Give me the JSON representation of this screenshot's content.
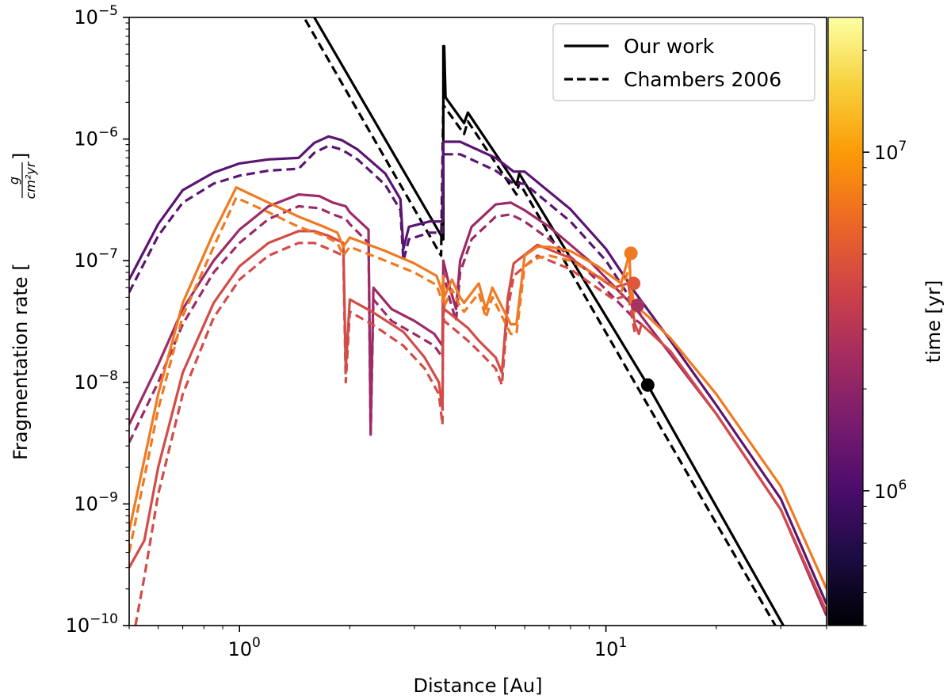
{
  "chart_data": {
    "type": "line",
    "title": "",
    "xlabel": "Distance [Au]",
    "ylabel_main": "Fragmentation rate [",
    "ylabel_unit_num": "g",
    "ylabel_unit_den": "cm²yr",
    "ylabel_close": "]",
    "x_scale": "log",
    "y_scale": "log",
    "xlim": [
      0.5,
      40
    ],
    "ylim": [
      1e-10,
      1e-05
    ],
    "x_ticks": [
      {
        "value": 1,
        "base": "10",
        "exp": "0"
      },
      {
        "value": 10,
        "base": "10",
        "exp": "1"
      }
    ],
    "y_ticks": [
      {
        "value": 1e-10,
        "base": "10",
        "exp": "−10"
      },
      {
        "value": 1e-09,
        "base": "10",
        "exp": "−9"
      },
      {
        "value": 1e-08,
        "base": "10",
        "exp": "−8"
      },
      {
        "value": 1e-07,
        "base": "10",
        "exp": "−7"
      },
      {
        "value": 1e-06,
        "base": "10",
        "exp": "−6"
      },
      {
        "value": 1e-05,
        "base": "10",
        "exp": "−5"
      }
    ],
    "legend": {
      "placement": "top-right",
      "entries": [
        {
          "label": "Our work",
          "style": "solid"
        },
        {
          "label": "Chambers 2006",
          "style": "dashed"
        }
      ]
    },
    "colorbar": {
      "label": "time [yr]",
      "scale": "log",
      "range": [
        400000.0,
        25000000.0
      ],
      "colormap": "inferno",
      "ticks": [
        {
          "value": 1000000.0,
          "base": "10",
          "exp": "6"
        },
        {
          "value": 10000000.0,
          "base": "10",
          "exp": "7"
        }
      ],
      "stops": [
        "#000004",
        "#1b0c41",
        "#4a0c6b",
        "#781c6d",
        "#a52c60",
        "#cf4446",
        "#ed6925",
        "#fb9b06",
        "#f7d13d",
        "#fcffa4"
      ]
    },
    "series": [
      {
        "color": "#000000",
        "style": "solid",
        "x": [
          0.5,
          1.6,
          3.6,
          3.6,
          3.62,
          3.65,
          4.1,
          4.2,
          5.7,
          5.8,
          13,
          30.5
        ],
        "y": [
          0.0001,
          1e-05,
          1.5e-07,
          5.8e-06,
          5.8e-06,
          2.2e-06,
          1.35e-06,
          1.65e-06,
          4.2e-07,
          5.2e-07,
          9.5e-09,
          1e-10
        ]
      },
      {
        "color": "#000000",
        "style": "dashed",
        "x": [
          0.5,
          1.5,
          3.55,
          3.6,
          4.1,
          4.2,
          5.7,
          5.8,
          12.5,
          29
        ],
        "y": [
          0.0001,
          1e-05,
          1.1e-07,
          1.9e-06,
          1.1e-06,
          1.4e-06,
          3.5e-07,
          4.4e-07,
          8e-09,
          1e-10
        ]
      },
      {
        "color": "#5a1570",
        "style": "solid",
        "x": [
          0.5,
          0.6,
          0.7,
          0.85,
          1.0,
          1.2,
          1.45,
          1.6,
          1.75,
          1.9,
          2.1,
          2.5,
          2.75,
          2.8,
          2.9,
          3.3,
          3.58,
          3.6,
          4.0,
          5.0,
          5.6,
          6.0,
          8.0,
          10.0,
          12.0,
          15.0,
          20.0,
          30.0,
          40.0
        ],
        "y": [
          7e-08,
          2e-07,
          3.8e-07,
          5.3e-07,
          6.3e-07,
          6.8e-07,
          7e-07,
          9.3e-07,
          1.05e-06,
          9.8e-07,
          8.2e-07,
          5.2e-07,
          3.2e-07,
          1.25e-07,
          1.9e-07,
          2.1e-07,
          2.1e-07,
          9.5e-07,
          9.5e-07,
          7e-07,
          5.4e-07,
          5.4e-07,
          2.65e-07,
          1.25e-07,
          5.5e-08,
          2.2e-08,
          6.5e-09,
          1.1e-09,
          1.5e-10
        ]
      },
      {
        "color": "#5a1570",
        "style": "dashed",
        "x": [
          0.5,
          0.6,
          0.7,
          0.85,
          1.0,
          1.2,
          1.45,
          1.6,
          1.75,
          1.9,
          2.1,
          2.5,
          2.75,
          2.8,
          2.9,
          3.3,
          3.58,
          3.6,
          4.0,
          5.0,
          5.6,
          6.0,
          8.0,
          10.0,
          12.0,
          12.5
        ],
        "y": [
          5.5e-08,
          1.6e-07,
          3e-07,
          4.3e-07,
          5e-07,
          5.5e-07,
          5.7e-07,
          7.7e-07,
          8.8e-07,
          8.2e-07,
          6.8e-07,
          4.2e-07,
          2.6e-07,
          1e-07,
          1.5e-07,
          1.7e-07,
          1.7e-07,
          7.5e-07,
          7.5e-07,
          5.5e-07,
          4.3e-07,
          4.3e-07,
          2.1e-07,
          1e-07,
          4.3e-08,
          3.5e-08
        ]
      },
      {
        "color": "#9c2b66",
        "style": "solid",
        "x": [
          0.5,
          0.6,
          0.7,
          0.85,
          1.0,
          1.2,
          1.45,
          1.65,
          1.8,
          1.95,
          2.0,
          2.25,
          2.28,
          2.32,
          2.6,
          3.0,
          3.4,
          3.58,
          3.6,
          3.75,
          3.9,
          4.0,
          4.3,
          5.0,
          5.5,
          6.0,
          7.0,
          9.0,
          12.0,
          15.0,
          20.0,
          30.0,
          40.0
        ],
        "y": [
          4.5e-09,
          1.4e-08,
          4e-08,
          1e-07,
          1.8e-07,
          2.8e-07,
          3.5e-07,
          3.4e-07,
          3e-07,
          2.8e-07,
          2.5e-07,
          1.8e-07,
          4e-09,
          6e-08,
          4e-08,
          3.2e-08,
          2.5e-08,
          2e-08,
          1e-07,
          6e-08,
          4e-08,
          1e-07,
          1.9e-07,
          2.9e-07,
          3e-07,
          2.6e-07,
          1.9e-07,
          1e-07,
          4.1e-08,
          1.7e-08,
          5.5e-09,
          9e-10,
          1.2e-10
        ]
      },
      {
        "color": "#9c2b66",
        "style": "dashed",
        "x": [
          0.5,
          0.6,
          0.7,
          0.85,
          1.0,
          1.2,
          1.45,
          1.65,
          1.8,
          1.95,
          2.0,
          2.25,
          2.28,
          2.32,
          2.6,
          3.0,
          3.4,
          3.58,
          3.6,
          3.75,
          3.9,
          4.0,
          4.3,
          5.0,
          5.5,
          6.0,
          7.0,
          9.0,
          12.0,
          12.5
        ],
        "y": [
          3.2e-09,
          1e-08,
          3e-08,
          8e-08,
          1.4e-07,
          2.2e-07,
          2.8e-07,
          2.7e-07,
          2.4e-07,
          2.2e-07,
          2e-07,
          1.4e-07,
          3.5e-09,
          4.8e-08,
          3.2e-08,
          2.5e-08,
          2e-08,
          1.6e-08,
          8e-08,
          4.8e-08,
          3.2e-08,
          8e-08,
          1.5e-07,
          2.3e-07,
          2.4e-07,
          2.1e-07,
          1.5e-07,
          8e-08,
          3.3e-08,
          3e-08
        ]
      },
      {
        "color": "#d24c48",
        "style": "solid",
        "x": [
          0.5,
          0.55,
          0.6,
          0.7,
          0.85,
          1.0,
          1.2,
          1.45,
          1.6,
          1.75,
          1.92,
          1.95,
          2.0,
          2.3,
          2.8,
          3.2,
          3.5,
          3.58,
          3.6,
          3.62,
          4.2,
          4.5,
          5.0,
          5.2,
          5.4,
          5.6,
          6.5,
          8.0,
          10.5,
          11.5,
          12.0,
          12.3,
          12.5,
          15.0,
          20.0,
          30.0,
          40.0
        ],
        "y": [
          3e-10,
          5e-10,
          2e-09,
          1.2e-08,
          4.5e-08,
          9e-08,
          1.4e-07,
          1.75e-07,
          1.75e-07,
          1.6e-07,
          1.4e-07,
          1.3e-08,
          4.8e-08,
          3.8e-08,
          2.6e-08,
          1.6e-08,
          1e-08,
          6e-09,
          6.5e-08,
          4e-08,
          2.8e-08,
          2.2e-08,
          1.6e-08,
          1.2e-08,
          5e-08,
          9.5e-08,
          1.35e-07,
          1.05e-07,
          6e-08,
          6.5e-08,
          3e-08,
          2.5e-08,
          3e-08,
          1.8e-08,
          5.5e-09,
          9e-10,
          1.3e-10
        ]
      },
      {
        "color": "#d24c48",
        "style": "dashed",
        "x": [
          0.52,
          0.55,
          0.6,
          0.7,
          0.85,
          1.0,
          1.2,
          1.45,
          1.6,
          1.75,
          1.92,
          1.95,
          2.0,
          2.3,
          2.8,
          3.2,
          3.5,
          3.58,
          3.6,
          3.62,
          4.2,
          4.5,
          5.0,
          5.2,
          5.4,
          5.6,
          6.5,
          8.0,
          10.5,
          11.5,
          12.0
        ],
        "y": [
          1e-10,
          2.5e-10,
          1.2e-09,
          8e-09,
          3.4e-08,
          7e-08,
          1.1e-07,
          1.4e-07,
          1.4e-07,
          1.25e-07,
          1.1e-07,
          1e-08,
          3.8e-08,
          3e-08,
          2e-08,
          1.3e-08,
          8e-09,
          4.5e-09,
          5e-08,
          3.2e-08,
          2.2e-08,
          1.8e-08,
          1.3e-08,
          9.5e-09,
          4e-08,
          7.5e-08,
          1.1e-07,
          8.5e-08,
          4.8e-08,
          5.2e-08,
          2.5e-08
        ]
      },
      {
        "color": "#f07a22",
        "style": "solid",
        "x": [
          0.5,
          0.6,
          0.7,
          0.85,
          0.98,
          1.2,
          1.45,
          1.7,
          1.85,
          1.92,
          2.0,
          2.5,
          3.0,
          3.45,
          3.58,
          3.6,
          3.62,
          3.8,
          4.0,
          4.1,
          4.5,
          4.7,
          4.9,
          5.5,
          5.7,
          6.0,
          6.5,
          7.0,
          8.0,
          9.5,
          11.0,
          11.6,
          11.7,
          12.0,
          13.0,
          15.0,
          20.0,
          30.0,
          40.0
        ],
        "y": [
          6e-10,
          8e-09,
          4.5e-08,
          1.7e-07,
          4e-07,
          3e-07,
          2.3e-07,
          1.9e-07,
          1.7e-07,
          1.3e-07,
          1.55e-07,
          1.2e-07,
          9.5e-08,
          7.5e-08,
          5.5e-08,
          7.5e-08,
          5e-08,
          7e-08,
          5e-08,
          4.5e-08,
          6.5e-08,
          4e-08,
          6e-08,
          3e-08,
          3e-08,
          1.1e-07,
          1.3e-07,
          1.3e-07,
          1.2e-07,
          9e-08,
          6.5e-08,
          1.15e-07,
          4.5e-08,
          4.3e-08,
          3.5e-08,
          2.3e-08,
          8e-09,
          1.4e-09,
          2e-10
        ]
      },
      {
        "color": "#f07a22",
        "style": "dashed",
        "x": [
          0.5,
          0.6,
          0.7,
          0.85,
          0.98,
          1.2,
          1.45,
          1.7,
          1.85,
          1.92,
          2.0,
          2.5,
          3.0,
          3.45,
          3.58,
          3.6,
          3.62,
          3.8,
          4.0,
          4.1,
          4.5,
          4.7,
          4.9,
          5.5,
          5.7,
          6.0,
          6.5,
          7.0,
          8.0,
          9.5,
          11.0,
          11.6,
          12.0
        ],
        "y": [
          4e-10,
          6e-09,
          3.5e-08,
          1.3e-07,
          3.3e-07,
          2.5e-07,
          1.9e-07,
          1.6e-07,
          1.4e-07,
          1.1e-07,
          1.3e-07,
          1e-07,
          8e-08,
          6.3e-08,
          4.6e-08,
          6.3e-08,
          4.2e-08,
          5.8e-08,
          4.2e-08,
          3.8e-08,
          5.4e-08,
          3.4e-08,
          5e-08,
          2.5e-08,
          2.5e-08,
          9e-08,
          1.05e-07,
          1.1e-07,
          1e-07,
          7.5e-08,
          5.5e-08,
          9e-08,
          3.5e-08
        ]
      }
    ],
    "markers": [
      {
        "x": 13.0,
        "y": 9.5e-09,
        "color": "#000000"
      },
      {
        "x": 11.7,
        "y": 1.15e-07,
        "color": "#f07a22"
      },
      {
        "x": 11.9,
        "y": 6.5e-08,
        "color": "#e0583a"
      },
      {
        "x": 12.2,
        "y": 4.3e-08,
        "color": "#a83264"
      }
    ]
  }
}
